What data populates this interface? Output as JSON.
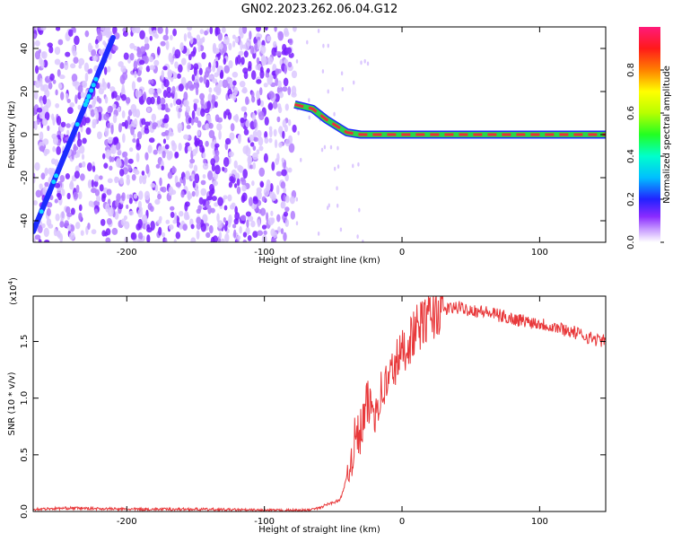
{
  "chart_data": [
    {
      "type": "heatmap",
      "title": "GN02.2023.262.06.04.G12",
      "xlabel": "Height of straight line (km)",
      "ylabel": "Frequency (Hz)",
      "xlim": [
        -268,
        148
      ],
      "ylim": [
        -50,
        50
      ],
      "xticks": [
        -200,
        -100,
        0,
        100
      ],
      "yticks": [
        -40,
        -20,
        0,
        20,
        40
      ],
      "colorbar": {
        "label": "Normalized spectral amplitude",
        "range": [
          0.0,
          1.0
        ],
        "ticks": [
          0.0,
          0.2,
          0.4,
          0.6,
          0.8
        ],
        "colormap": "hsv"
      },
      "ridge": [
        {
          "x": -78,
          "y": 14
        },
        {
          "x": -65,
          "y": 12
        },
        {
          "x": -55,
          "y": 7
        },
        {
          "x": -45,
          "y": 3
        },
        {
          "x": -40,
          "y": 1
        },
        {
          "x": -30,
          "y": 0
        },
        {
          "x": 0,
          "y": 0
        },
        {
          "x": 50,
          "y": 0
        },
        {
          "x": 148,
          "y": 0
        }
      ],
      "diagonal_trace": {
        "from": {
          "x": -268,
          "y": -45
        },
        "to": {
          "x": -210,
          "y": 45
        }
      },
      "noise_region_x": [
        -268,
        -78
      ],
      "colors": {
        "noise": "#7a1fff",
        "ridge_core": "#e8303a",
        "ridge_mid": "#2dd24b",
        "ridge_outer": "#1c2bff"
      }
    },
    {
      "type": "line",
      "xlabel": "Height of straight line (km)",
      "ylabel": "SNR (10 * v/v)",
      "y_multiplier": "(x10",
      "y_multiplier_exp": "4",
      "xlim": [
        -268,
        148
      ],
      "ylim": [
        0,
        1.9
      ],
      "xticks": [
        -200,
        -100,
        0,
        100
      ],
      "yticks": [
        0.0,
        0.5,
        1.0,
        1.5
      ],
      "ytick_labels": [
        "0.0",
        "0.5",
        "1.0",
        "1.5"
      ],
      "color": "#e8383a",
      "series": [
        {
          "x": [
            -268,
            -240,
            -200,
            -150,
            -100,
            -70,
            -60,
            -55,
            -45,
            -40,
            -35,
            -30,
            -25,
            -20,
            -15,
            -10,
            -5,
            0,
            10,
            20,
            30,
            40,
            50,
            60,
            80,
            100,
            120,
            140,
            148
          ],
          "values": [
            0.02,
            0.03,
            0.02,
            0.02,
            0.01,
            0.01,
            0.03,
            0.06,
            0.1,
            0.3,
            0.6,
            0.7,
            0.95,
            0.9,
            1.05,
            1.15,
            1.3,
            1.4,
            1.6,
            1.72,
            1.78,
            1.8,
            1.78,
            1.76,
            1.7,
            1.66,
            1.6,
            1.52,
            1.5
          ]
        }
      ]
    }
  ]
}
